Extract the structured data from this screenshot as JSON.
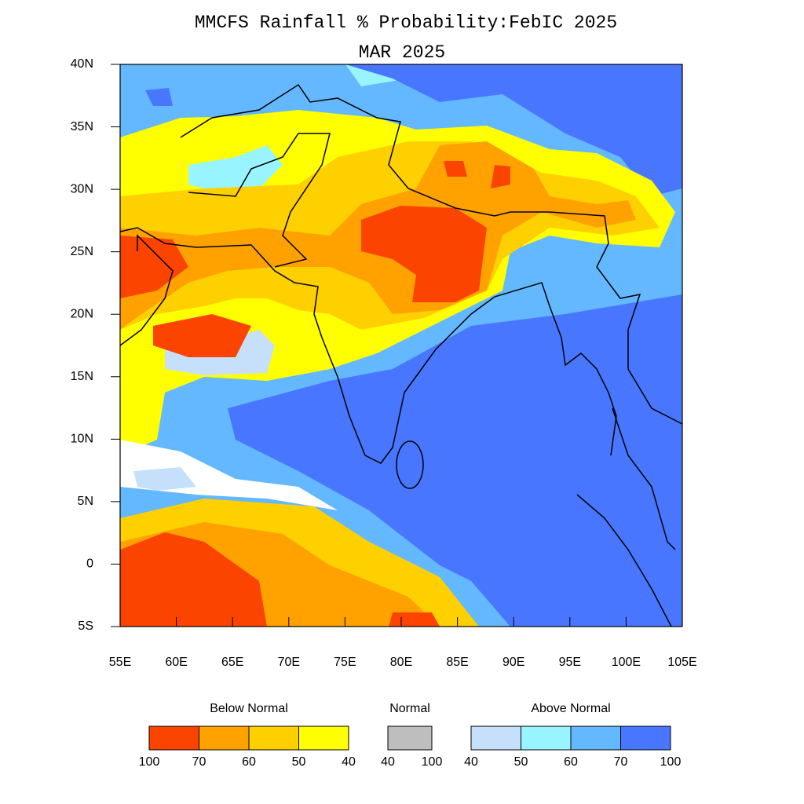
{
  "header": {
    "title": "MMCFS Rainfall % Probability:FebIC 2025",
    "subtitle": "MAR 2025"
  },
  "map": {
    "xlim": [
      55,
      105
    ],
    "ylim": [
      -5,
      40
    ],
    "xticks": [
      {
        "value": 55,
        "label": "55E"
      },
      {
        "value": 60,
        "label": "60E"
      },
      {
        "value": 65,
        "label": "65E"
      },
      {
        "value": 70,
        "label": "70E"
      },
      {
        "value": 75,
        "label": "75E"
      },
      {
        "value": 80,
        "label": "80E"
      },
      {
        "value": 85,
        "label": "85E"
      },
      {
        "value": 90,
        "label": "90E"
      },
      {
        "value": 95,
        "label": "95E"
      },
      {
        "value": 100,
        "label": "100E"
      },
      {
        "value": 105,
        "label": "105E"
      }
    ],
    "yticks": [
      {
        "value": -5,
        "label": "5S"
      },
      {
        "value": 0,
        "label": "0"
      },
      {
        "value": 5,
        "label": "5N"
      },
      {
        "value": 10,
        "label": "10N"
      },
      {
        "value": 15,
        "label": "15N"
      },
      {
        "value": 20,
        "label": "20N"
      },
      {
        "value": 25,
        "label": "25N"
      },
      {
        "value": 30,
        "label": "30N"
      },
      {
        "value": 35,
        "label": "35N"
      },
      {
        "value": 40,
        "label": "40N"
      }
    ]
  },
  "legend": [
    {
      "title": "Below Normal",
      "colors": [
        "#fa4400",
        "#ffa200",
        "#ffd000",
        "#ffff00"
      ],
      "labels": [
        100,
        70,
        60,
        50,
        40
      ]
    },
    {
      "title": "Normal",
      "colors": [
        "#bebebe"
      ],
      "labels": [
        40,
        100
      ]
    },
    {
      "title": "Above Normal",
      "colors": [
        "#c6e0fb",
        "#98f5ff",
        "#63b8ff",
        "#4876ff"
      ],
      "labels": [
        40,
        50,
        60,
        70,
        100
      ]
    }
  ]
}
